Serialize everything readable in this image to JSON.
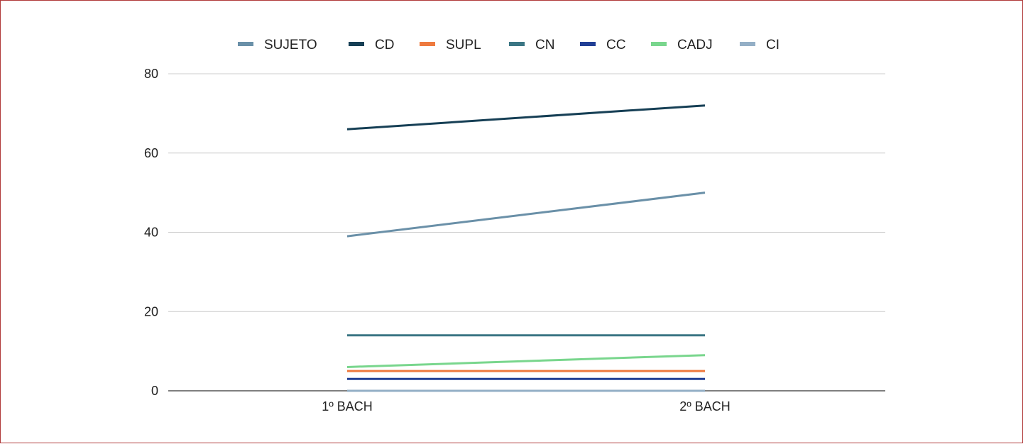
{
  "chart_data": {
    "type": "line",
    "categories": [
      "1º BACH",
      "2º BACH"
    ],
    "series": [
      {
        "name": "SUJETO",
        "values": [
          39,
          50
        ],
        "color": "#6a90a8"
      },
      {
        "name": "CD",
        "values": [
          66,
          72
        ],
        "color": "#163f55"
      },
      {
        "name": "SUPL",
        "values": [
          5,
          5
        ],
        "color": "#ee7a3f"
      },
      {
        "name": "CN",
        "values": [
          14,
          14
        ],
        "color": "#3b7684"
      },
      {
        "name": "CC",
        "values": [
          3,
          3
        ],
        "color": "#213f95"
      },
      {
        "name": "CADJ",
        "values": [
          6,
          9
        ],
        "color": "#79d68d"
      },
      {
        "name": "CI",
        "values": [
          0,
          0
        ],
        "color": "#94afc6"
      }
    ],
    "ylim": [
      0,
      80
    ],
    "yticks": [
      0,
      20,
      40,
      60,
      80
    ],
    "grid": true,
    "legend_position": "top",
    "title": "",
    "xlabel": "",
    "ylabel": ""
  }
}
